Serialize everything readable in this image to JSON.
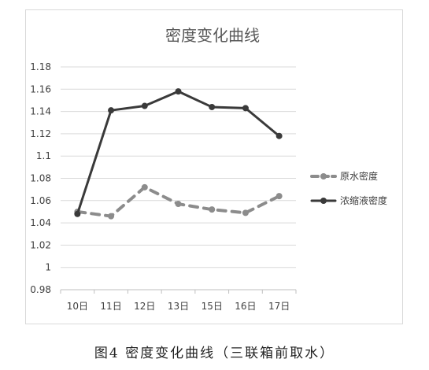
{
  "caption": "图4 密度变化曲线（三联箱前取水）",
  "chart_data": {
    "type": "line",
    "title": "密度变化曲线",
    "xlabel": "",
    "ylabel": "",
    "categories": [
      "10日",
      "11日",
      "12日",
      "13日",
      "15日",
      "16日",
      "17日"
    ],
    "ylim": [
      0.98,
      1.18
    ],
    "yticks": [
      "0.98",
      "1",
      "1.02",
      "1.04",
      "1.06",
      "1.08",
      "1.1",
      "1.12",
      "1.14",
      "1.16",
      "1.18"
    ],
    "grid": true,
    "legend_position": "right",
    "series": [
      {
        "name": "原水密度",
        "values": [
          1.05,
          1.046,
          1.072,
          1.057,
          1.052,
          1.049,
          1.064
        ],
        "color": "#8c8c8c",
        "dashed": true
      },
      {
        "name": "浓缩液密度",
        "values": [
          1.048,
          1.141,
          1.145,
          1.158,
          1.144,
          1.143,
          1.118
        ],
        "color": "#3a3a3a",
        "dashed": false
      }
    ]
  }
}
